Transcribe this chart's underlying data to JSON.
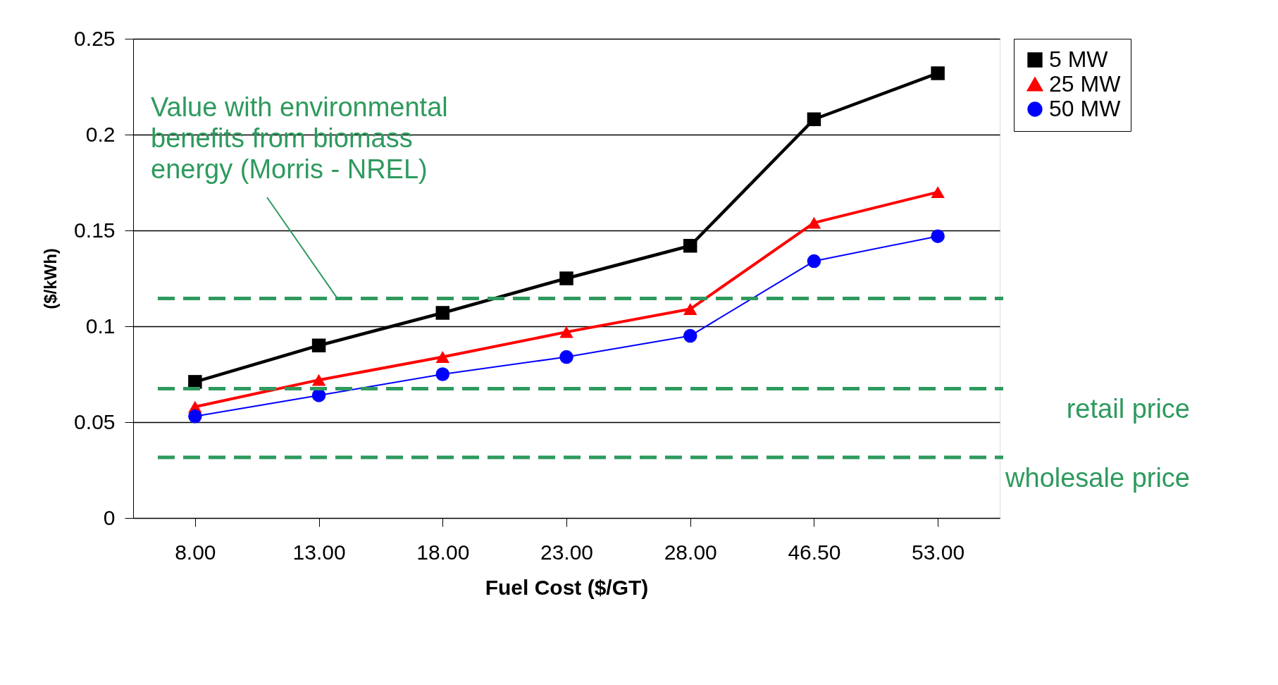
{
  "chart_data": {
    "type": "line",
    "xlabel": "Fuel Cost ($/GT)",
    "ylabel": "($/kWh)",
    "categories": [
      "8.00",
      "13.00",
      "18.00",
      "23.00",
      "28.00",
      "46.50",
      "53.00"
    ],
    "series": [
      {
        "name": "5 MW",
        "color": "#000000",
        "marker": "square",
        "values": [
          0.071,
          0.09,
          0.107,
          0.125,
          0.142,
          0.208,
          0.232
        ]
      },
      {
        "name": "25 MW",
        "color": "#ff0000",
        "marker": "triangle",
        "values": [
          0.058,
          0.072,
          0.084,
          0.097,
          0.109,
          0.154,
          0.17
        ]
      },
      {
        "name": "50 MW",
        "color": "#0000ff",
        "marker": "circle",
        "values": [
          0.053,
          0.064,
          0.075,
          0.084,
          0.095,
          0.134,
          0.147
        ]
      }
    ],
    "ylim": [
      0,
      0.25
    ],
    "yticks": [
      0,
      0.05,
      0.1,
      0.15,
      0.2,
      0.25
    ],
    "ref_lines": [
      {
        "axis": "y",
        "value": 0.1145,
        "label": "Value with environmental benefits from biomass energy (Morris - NREL)",
        "color": "#2e9a5e",
        "line_style": "dashed"
      },
      {
        "axis": "y",
        "value": 0.0675,
        "label": "retail price",
        "color": "#2e9a5e",
        "line_style": "dashed"
      },
      {
        "axis": "y",
        "value": 0.0316,
        "label": "wholesale price",
        "color": "#2e9a5e",
        "line_style": "dashed"
      }
    ],
    "grid": "y",
    "legend": "right",
    "line_style": "solid"
  }
}
